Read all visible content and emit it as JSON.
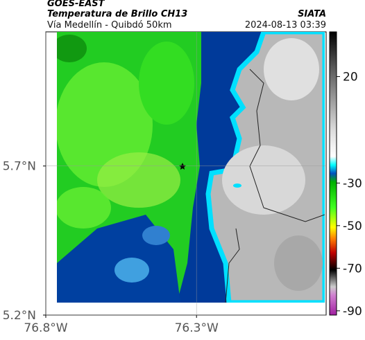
{
  "header": {
    "satellite": "GOES-EAST",
    "product": "Temperatura de Brillo CH13",
    "region": "Vía Medellín - Quibdó 50km",
    "source": "SIATA",
    "timestamp": "2024-08-13 03:39"
  },
  "map": {
    "xlim": [
      -76.8,
      -75.87
    ],
    "ylim": [
      5.2,
      6.15
    ],
    "xticks": [
      {
        "value": -76.8,
        "label": "76.8°W"
      },
      {
        "value": -76.3,
        "label": "76.3°W"
      }
    ],
    "yticks": [
      {
        "value": 5.2,
        "label": "5.2°N"
      },
      {
        "value": 5.7,
        "label": "5.7°N"
      }
    ]
  },
  "colorbar": {
    "lim": [
      -92,
      41
    ],
    "ticks": [
      20,
      -30,
      -50,
      -70,
      -90
    ]
  }
}
